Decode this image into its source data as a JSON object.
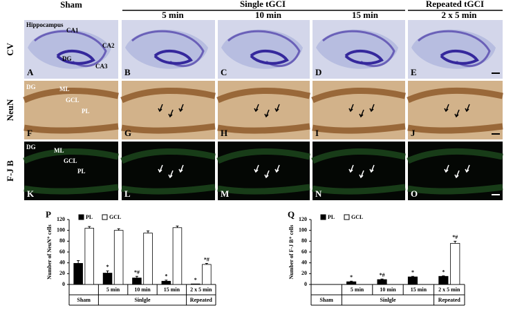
{
  "figure": {
    "header": {
      "sham": "Sham",
      "single": "Single tGCI",
      "repeated": "Repeated tGCI",
      "columns": [
        "5 min",
        "10 min",
        "15 min",
        "2 x 5 min"
      ]
    },
    "row_labels": [
      "CV",
      "NeuN",
      "F-J B"
    ],
    "panels": [
      [
        "A",
        "B",
        "C",
        "D",
        "E"
      ],
      [
        "F",
        "G",
        "H",
        "I",
        "J"
      ],
      [
        "K",
        "L",
        "M",
        "N",
        "O"
      ]
    ],
    "cv_labels": [
      "Hippocampus",
      "CA1",
      "CA2",
      "DG",
      "CA3"
    ],
    "neun_labels": [
      "DG",
      "ML",
      "GCL",
      "PL"
    ],
    "fjb_labels": [
      "DG",
      "ML",
      "GCL",
      "PL"
    ]
  },
  "chart_data": [
    {
      "type": "bar",
      "panel_label": "P",
      "ylabel": "Number of NeuN⁺ cells",
      "categories": [
        null,
        "5 min",
        "10 min",
        "15 min",
        "2 x 5 min"
      ],
      "group_labels": [
        "Sham",
        "Sinlgle",
        "Repeated"
      ],
      "ylim": [
        0,
        120
      ],
      "yticks": [
        0,
        20,
        40,
        60,
        80,
        100,
        120
      ],
      "series": [
        {
          "name": "PL",
          "color": "#000000",
          "values": [
            39,
            21,
            12,
            6,
            1
          ],
          "errors": [
            5,
            4,
            3,
            2,
            0
          ],
          "annotations": [
            null,
            "*",
            "*#",
            "*",
            "*"
          ]
        },
        {
          "name": "GCL",
          "color": "#ffffff",
          "values": [
            104,
            100,
            95,
            105,
            37
          ],
          "errors": [
            3,
            3,
            4,
            3,
            2
          ],
          "annotations": [
            null,
            null,
            null,
            null,
            "*#"
          ]
        }
      ]
    },
    {
      "type": "bar",
      "panel_label": "Q",
      "ylabel": "Number of F-J B⁺ cells",
      "categories": [
        null,
        "5 min",
        "10 min",
        "15 min",
        "2 x 5 min"
      ],
      "group_labels": [
        "Sham",
        "Sinlgle",
        "Repeated"
      ],
      "ylim": [
        0,
        120
      ],
      "yticks": [
        0,
        20,
        40,
        60,
        80,
        100,
        120
      ],
      "series": [
        {
          "name": "PL",
          "color": "#000000",
          "values": [
            0,
            5,
            9,
            14,
            15
          ],
          "errors": [
            0,
            1,
            1,
            1,
            1
          ],
          "annotations": [
            null,
            "*",
            "*#",
            "*",
            "*"
          ]
        },
        {
          "name": "GCL",
          "color": "#ffffff",
          "values": [
            0,
            0,
            0,
            0,
            76
          ],
          "errors": [
            0,
            0,
            0,
            0,
            4
          ],
          "annotations": [
            null,
            null,
            null,
            null,
            "*#"
          ]
        }
      ]
    }
  ]
}
